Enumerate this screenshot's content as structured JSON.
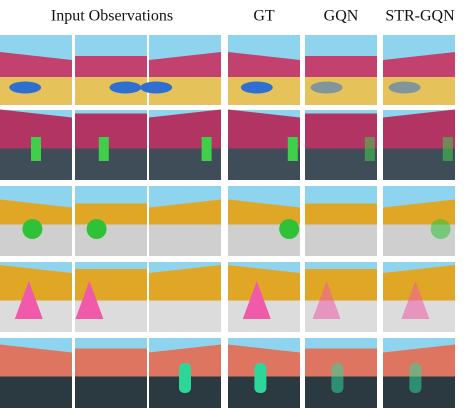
{
  "figure": {
    "columns": {
      "input": "Input Observations",
      "gt": "GT",
      "gqn": "GQN",
      "str_gqn": "STR-GQN"
    }
  }
}
